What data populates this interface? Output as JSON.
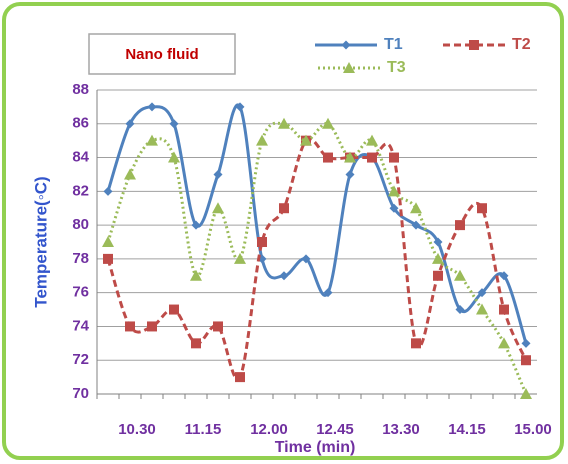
{
  "chart_data": {
    "type": "line",
    "annotation": "Nano fluid",
    "x_label": "Time (min)",
    "y_label": "Temperature(◦C)",
    "categories": [
      null,
      "10.30",
      null,
      null,
      "11.15",
      null,
      null,
      "12.00",
      null,
      null,
      "12.45",
      null,
      null,
      "13.30",
      null,
      null,
      "14.15",
      null,
      null,
      "15.00"
    ],
    "series": [
      {
        "name": "T1",
        "color": "#4f81bd",
        "marker": "diamond",
        "dash": "solid",
        "values": [
          82,
          86,
          87,
          86,
          80,
          83,
          87,
          78,
          77,
          78,
          76,
          83,
          84,
          81,
          80,
          79,
          75,
          76,
          77,
          73
        ]
      },
      {
        "name": "T2",
        "color": "#be4b48",
        "marker": "square",
        "dash": "dashed",
        "values": [
          78,
          74,
          74,
          75,
          73,
          74,
          71,
          79,
          81,
          85,
          84,
          84,
          84,
          84,
          73,
          77,
          80,
          81,
          75,
          72
        ]
      },
      {
        "name": "T3",
        "color": "#9bbb59",
        "marker": "triangle",
        "dash": "dotted",
        "values": [
          79,
          83,
          85,
          84,
          77,
          81,
          78,
          85,
          86,
          85,
          86,
          84,
          85,
          82,
          81,
          78,
          77,
          75,
          73,
          70
        ]
      }
    ],
    "ylim": [
      70,
      88
    ],
    "yticks": [
      70,
      72,
      74,
      76,
      78,
      80,
      82,
      84,
      86,
      88
    ],
    "grid": true,
    "frame_color": "#92d050",
    "axis_text_color": "#7030a0"
  }
}
